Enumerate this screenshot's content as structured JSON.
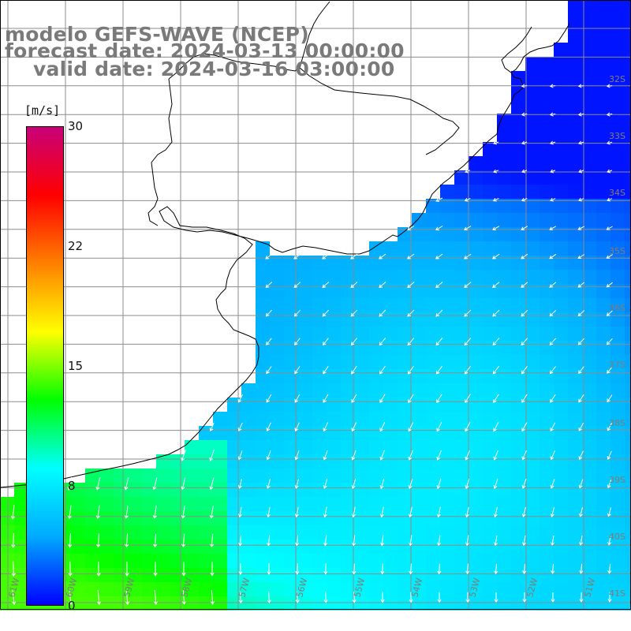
{
  "title": {
    "line1": "modelo GEFS-WAVE (NCEP)",
    "line2": "forecast date: 2024-03-13 00:00:00",
    "line3": "valid date: 2024-03-16 03:00:00"
  },
  "colorbar": {
    "units": "[m/s]",
    "ticks": [
      "30",
      "22",
      "15",
      "8",
      "0"
    ],
    "min": 0,
    "max": 30,
    "colors": [
      "#0000ff",
      "#00aaff",
      "#00ffff",
      "#00ff00",
      "#ffff00",
      "#ff8000",
      "#ff0000",
      "#c8007a"
    ]
  },
  "map": {
    "variable": "wind speed and direction",
    "lat_labels": [
      "32S",
      "33S",
      "34S",
      "35S",
      "36S",
      "37S",
      "38S",
      "39S",
      "40S",
      "41S"
    ],
    "lon_labels": [
      "61W",
      "60W",
      "59W",
      "58W",
      "57W",
      "56W",
      "55W",
      "54W",
      "53W",
      "52W",
      "51W"
    ],
    "land_color": "#ffffff",
    "grid_color": "#8c8c8c",
    "coast_color": "#000000",
    "arrow_color": "#ffffff"
  }
}
